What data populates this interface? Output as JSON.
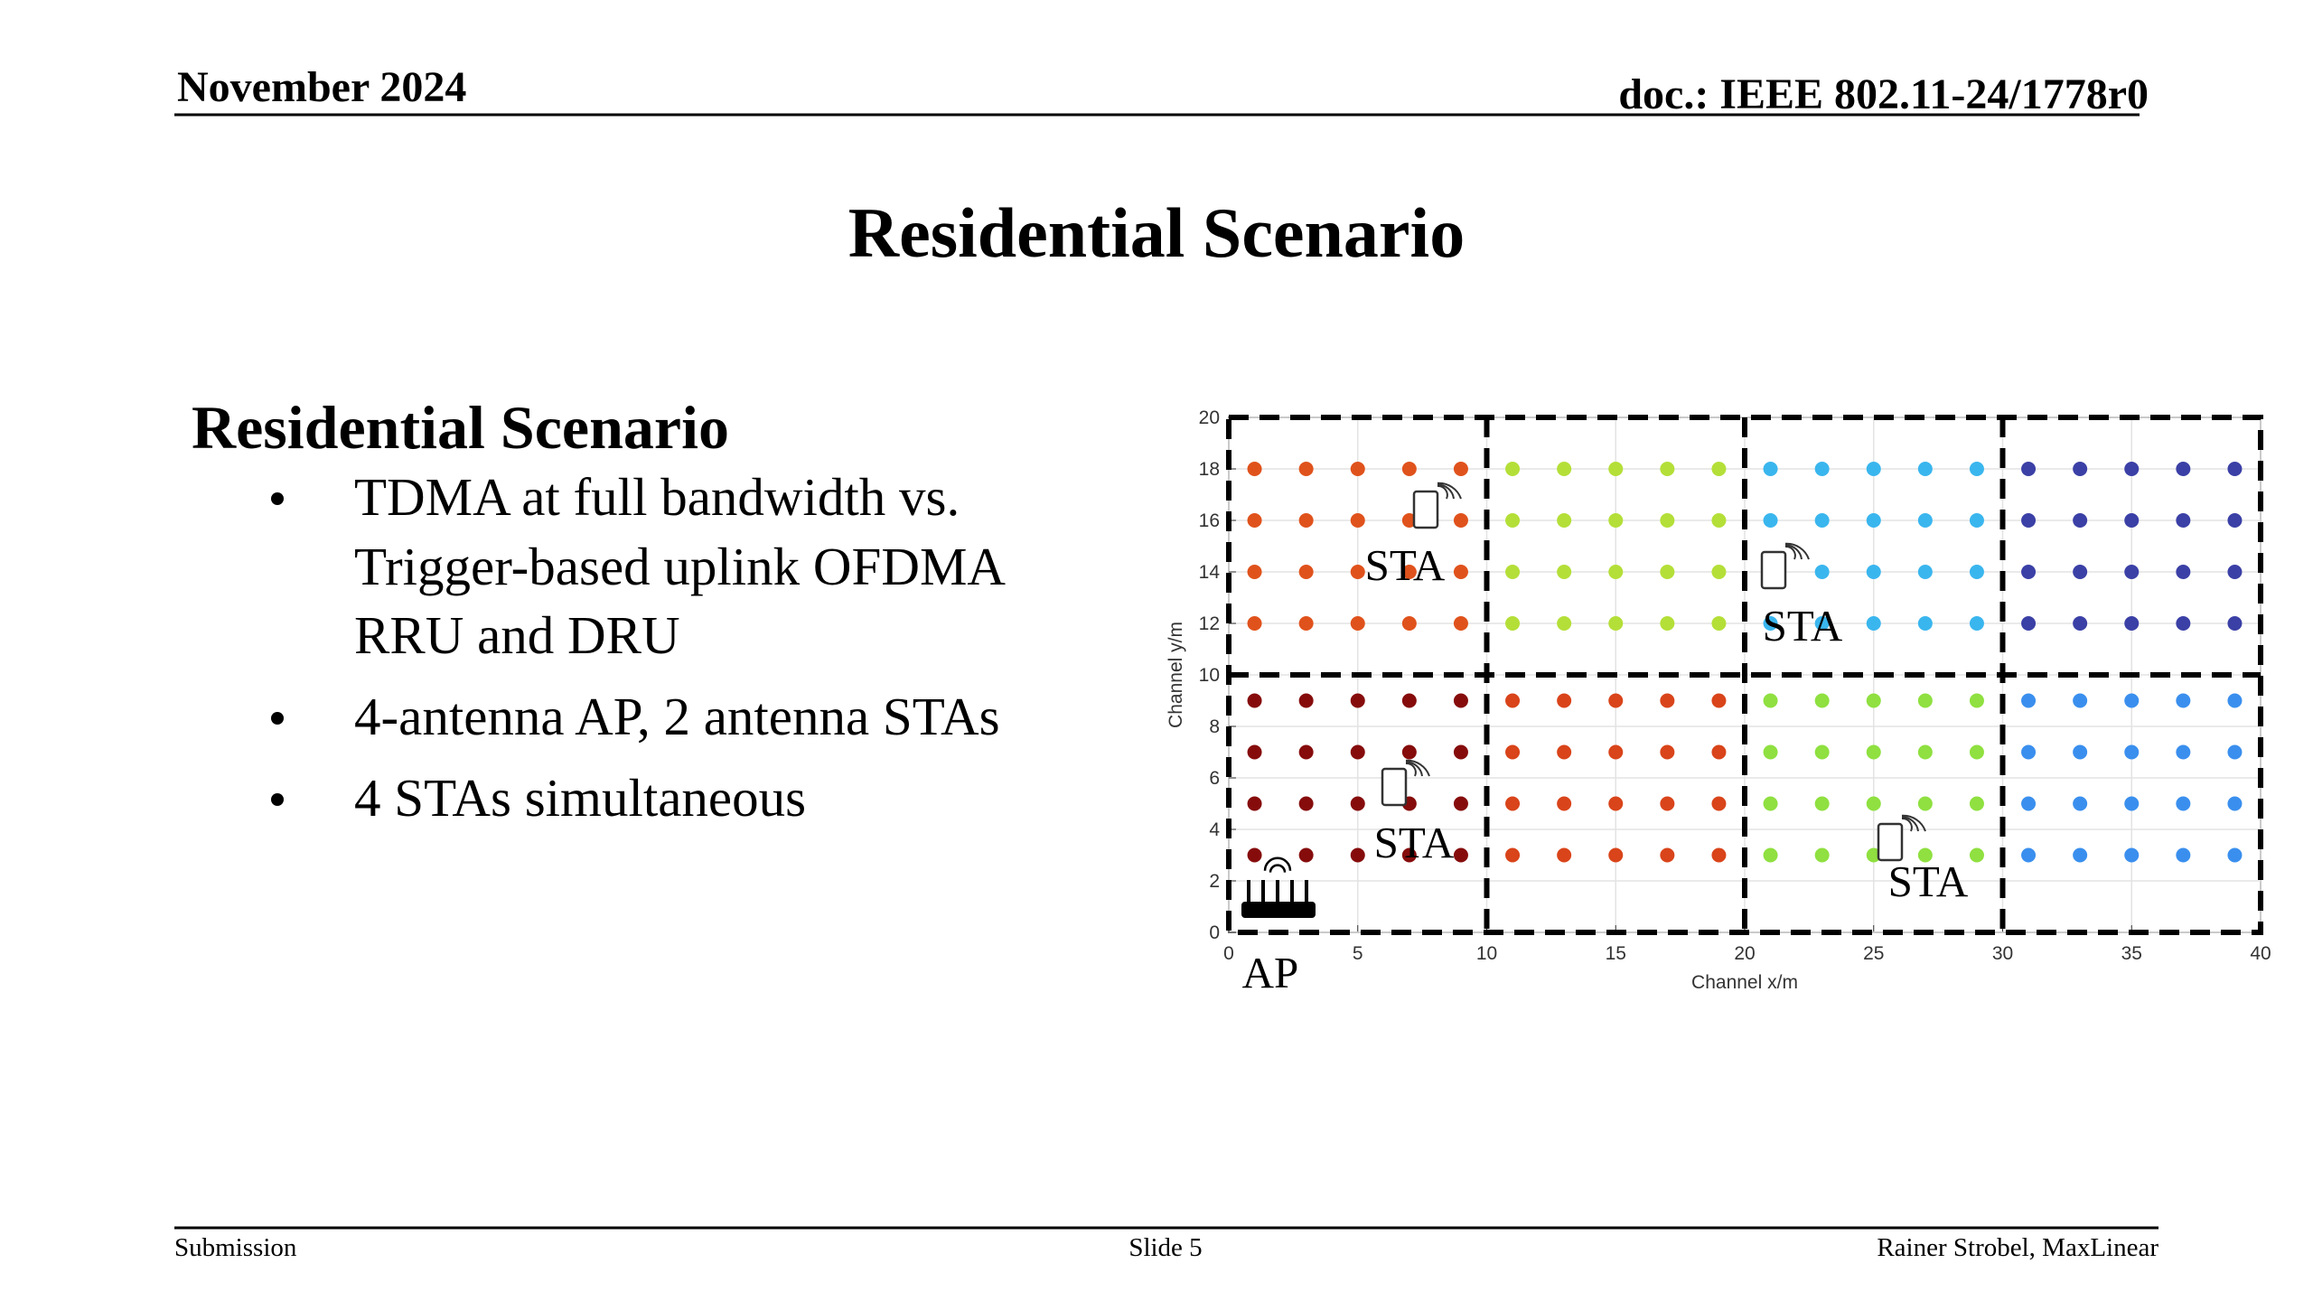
{
  "header": {
    "date": "November 2024",
    "doc": "doc.: IEEE 802.11-24/1778r0"
  },
  "title": "Residential Scenario",
  "body": {
    "heading": "Residential Scenario",
    "bullets": [
      [
        "TDMA at full bandwidth vs.",
        "Trigger-based uplink OFDMA",
        "RRU and DRU"
      ],
      [
        "4-antenna AP, 2 antenna STAs"
      ],
      [
        "4 STAs simultaneous"
      ]
    ]
  },
  "footer": {
    "left": "Submission",
    "center": "Slide 5",
    "right": "Rainer Strobel, MaxLinear"
  },
  "chart_data": {
    "type": "scatter",
    "xlabel": "Channel x/m",
    "ylabel": "Channel y/m",
    "xlim": [
      0,
      40
    ],
    "ylim": [
      0,
      20
    ],
    "xticks": [
      0,
      5,
      10,
      15,
      20,
      25,
      30,
      35,
      40
    ],
    "yticks": [
      0,
      2,
      4,
      6,
      8,
      10,
      12,
      14,
      16,
      18,
      20
    ],
    "grid": true,
    "annotations": [
      "STA",
      "STA",
      "STA",
      "STA",
      "AP"
    ],
    "series": [
      {
        "color": "#e0521c",
        "x": [
          1,
          3,
          5,
          7,
          9,
          1,
          3,
          5,
          7,
          9,
          1,
          3,
          5,
          7,
          9,
          1,
          3,
          5,
          7,
          9
        ],
        "y": [
          18,
          18,
          18,
          18,
          18,
          16,
          16,
          16,
          16,
          16,
          14,
          14,
          14,
          14,
          14,
          12,
          12,
          12,
          12,
          12
        ]
      },
      {
        "color": "#b4df38",
        "x": [
          11,
          13,
          15,
          17,
          19,
          11,
          13,
          15,
          17,
          19,
          11,
          13,
          15,
          17,
          19,
          11,
          13,
          15,
          17,
          19
        ],
        "y": [
          18,
          18,
          18,
          18,
          18,
          16,
          16,
          16,
          16,
          16,
          14,
          14,
          14,
          14,
          14,
          12,
          12,
          12,
          12,
          12
        ]
      },
      {
        "color": "#3ab6ee",
        "x": [
          21,
          23,
          25,
          27,
          29,
          21,
          23,
          25,
          27,
          29,
          21,
          23,
          25,
          27,
          29,
          21,
          23,
          25,
          27,
          29
        ],
        "y": [
          18,
          18,
          18,
          18,
          18,
          16,
          16,
          16,
          16,
          16,
          14,
          14,
          14,
          14,
          14,
          12,
          12,
          12,
          12,
          12
        ]
      },
      {
        "color": "#3b40a6",
        "x": [
          31,
          33,
          35,
          37,
          39,
          31,
          33,
          35,
          37,
          39,
          31,
          33,
          35,
          37,
          39,
          31,
          33,
          35,
          37,
          39
        ],
        "y": [
          18,
          18,
          18,
          18,
          18,
          16,
          16,
          16,
          16,
          16,
          14,
          14,
          14,
          14,
          14,
          12,
          12,
          12,
          12,
          12
        ]
      },
      {
        "color": "#860c0c",
        "x": [
          1,
          3,
          5,
          7,
          9,
          1,
          3,
          5,
          7,
          9,
          1,
          3,
          5,
          7,
          9,
          1,
          3,
          5,
          7,
          9
        ],
        "y": [
          9,
          9,
          9,
          9,
          9,
          7,
          7,
          7,
          7,
          7,
          5,
          5,
          5,
          5,
          5,
          3,
          3,
          3,
          3,
          3
        ]
      },
      {
        "color": "#d9441a",
        "x": [
          11,
          13,
          15,
          17,
          19,
          11,
          13,
          15,
          17,
          19,
          11,
          13,
          15,
          17,
          19,
          11,
          13,
          15,
          17,
          19
        ],
        "y": [
          9,
          9,
          9,
          9,
          9,
          7,
          7,
          7,
          7,
          7,
          5,
          5,
          5,
          5,
          5,
          3,
          3,
          3,
          3,
          3
        ]
      },
      {
        "color": "#8fe040",
        "x": [
          21,
          23,
          25,
          27,
          29,
          21,
          23,
          25,
          27,
          29,
          21,
          23,
          25,
          27,
          29,
          21,
          23,
          25,
          27,
          29
        ],
        "y": [
          9,
          9,
          9,
          9,
          9,
          7,
          7,
          7,
          7,
          7,
          5,
          5,
          5,
          5,
          5,
          3,
          3,
          3,
          3,
          3
        ]
      },
      {
        "color": "#3a8fee",
        "x": [
          31,
          33,
          35,
          37,
          39,
          31,
          33,
          35,
          37,
          39,
          31,
          33,
          35,
          37,
          39,
          31,
          33,
          35,
          37,
          39
        ],
        "y": [
          9,
          9,
          9,
          9,
          9,
          7,
          7,
          7,
          7,
          7,
          5,
          5,
          5,
          5,
          5,
          3,
          3,
          3,
          3,
          3
        ]
      }
    ]
  }
}
